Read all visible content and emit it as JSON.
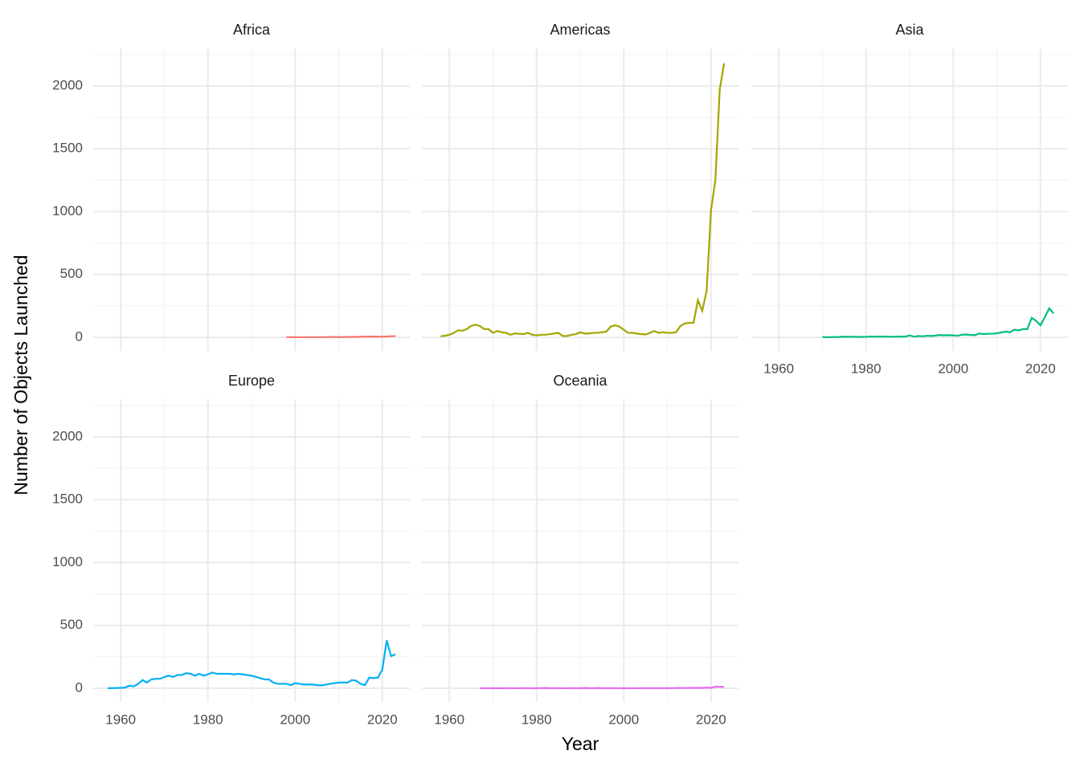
{
  "xlabel": "Year",
  "ylabel": "Number of Objects Launched",
  "chart_data": [
    {
      "type": "line",
      "title": "Africa",
      "x": [
        1998,
        1999,
        2000,
        2001,
        2002,
        2003,
        2004,
        2005,
        2006,
        2007,
        2008,
        2009,
        2010,
        2011,
        2012,
        2013,
        2014,
        2015,
        2016,
        2017,
        2018,
        2019,
        2020,
        2021,
        2022,
        2023
      ],
      "series": [
        {
          "color": "#F8766D",
          "values": [
            1,
            1,
            1,
            0,
            1,
            1,
            1,
            1,
            1,
            1,
            2,
            2,
            1,
            2,
            2,
            3,
            3,
            4,
            5,
            6,
            5,
            5,
            4,
            7,
            8,
            9
          ]
        }
      ],
      "xlim": [
        1953.7,
        2026.3
      ],
      "ylim": [
        -109,
        2300
      ],
      "xticks": [
        1960,
        1980,
        2000,
        2020
      ],
      "yticks": [
        0,
        500,
        1000,
        1500,
        2000
      ],
      "grid": true
    },
    {
      "type": "line",
      "title": "Americas",
      "x": [
        1958,
        1959,
        1960,
        1961,
        1962,
        1963,
        1964,
        1965,
        1966,
        1967,
        1968,
        1969,
        1970,
        1971,
        1972,
        1973,
        1974,
        1975,
        1976,
        1977,
        1978,
        1979,
        1980,
        1981,
        1982,
        1983,
        1984,
        1985,
        1986,
        1987,
        1988,
        1989,
        1990,
        1991,
        1992,
        1993,
        1994,
        1995,
        1996,
        1997,
        1998,
        1999,
        2000,
        2001,
        2002,
        2003,
        2004,
        2005,
        2006,
        2007,
        2008,
        2009,
        2010,
        2011,
        2012,
        2013,
        2014,
        2015,
        2016,
        2017,
        2018,
        2019,
        2020,
        2021,
        2022,
        2023
      ],
      "series": [
        {
          "color": "#A3A500",
          "values": [
            8,
            12,
            20,
            35,
            55,
            52,
            65,
            90,
            100,
            90,
            65,
            65,
            35,
            50,
            40,
            35,
            20,
            30,
            28,
            25,
            35,
            20,
            15,
            20,
            20,
            25,
            30,
            35,
            10,
            10,
            20,
            25,
            40,
            30,
            30,
            35,
            35,
            40,
            45,
            85,
            95,
            85,
            60,
            35,
            35,
            30,
            25,
            22,
            35,
            50,
            35,
            40,
            35,
            35,
            40,
            90,
            110,
            115,
            115,
            295,
            210,
            370,
            1010,
            1250,
            1970,
            2180
          ]
        }
      ],
      "xlim": [
        1953.7,
        2026.3
      ],
      "ylim": [
        -109,
        2300
      ],
      "xticks": [
        1960,
        1980,
        2000,
        2020
      ],
      "yticks": [
        0,
        500,
        1000,
        1500,
        2000
      ],
      "grid": true
    },
    {
      "type": "line",
      "title": "Asia",
      "x": [
        1970,
        1971,
        1972,
        1973,
        1974,
        1975,
        1976,
        1977,
        1978,
        1979,
        1980,
        1981,
        1982,
        1983,
        1984,
        1985,
        1986,
        1987,
        1988,
        1989,
        1990,
        1991,
        1992,
        1993,
        1994,
        1995,
        1996,
        1997,
        1998,
        1999,
        2000,
        2001,
        2002,
        2003,
        2004,
        2005,
        2006,
        2007,
        2008,
        2009,
        2010,
        2011,
        2012,
        2013,
        2014,
        2015,
        2016,
        2017,
        2018,
        2019,
        2020,
        2021,
        2022,
        2023
      ],
      "series": [
        {
          "color": "#00BF7D",
          "values": [
            2,
            1,
            1,
            2,
            3,
            5,
            4,
            4,
            3,
            3,
            4,
            6,
            4,
            6,
            5,
            5,
            4,
            5,
            6,
            5,
            15,
            5,
            10,
            8,
            12,
            10,
            14,
            18,
            15,
            17,
            15,
            12,
            20,
            22,
            18,
            17,
            30,
            25,
            28,
            28,
            32,
            38,
            45,
            40,
            60,
            55,
            65,
            65,
            155,
            130,
            95,
            160,
            230,
            190
          ]
        }
      ],
      "xlim": [
        1953.7,
        2026.3
      ],
      "ylim": [
        -109,
        2300
      ],
      "xticks": [
        1960,
        1980,
        2000,
        2020
      ],
      "yticks": [
        0,
        500,
        1000,
        1500,
        2000
      ],
      "grid": true
    },
    {
      "type": "line",
      "title": "Europe",
      "x": [
        1957,
        1958,
        1959,
        1960,
        1961,
        1962,
        1963,
        1964,
        1965,
        1966,
        1967,
        1968,
        1969,
        1970,
        1971,
        1972,
        1973,
        1974,
        1975,
        1976,
        1977,
        1978,
        1979,
        1980,
        1981,
        1982,
        1983,
        1984,
        1985,
        1986,
        1987,
        1988,
        1989,
        1990,
        1991,
        1992,
        1993,
        1994,
        1995,
        1996,
        1997,
        1998,
        1999,
        2000,
        2001,
        2002,
        2003,
        2004,
        2005,
        2006,
        2007,
        2008,
        2009,
        2010,
        2011,
        2012,
        2013,
        2014,
        2015,
        2016,
        2017,
        2018,
        2019,
        2020,
        2021,
        2022,
        2023
      ],
      "series": [
        {
          "color": "#00B0F6",
          "values": [
            1,
            1,
            2,
            3,
            5,
            20,
            15,
            35,
            65,
            45,
            70,
            75,
            75,
            90,
            100,
            90,
            105,
            105,
            120,
            115,
            100,
            115,
            100,
            110,
            125,
            115,
            115,
            115,
            115,
            110,
            115,
            110,
            105,
            100,
            90,
            80,
            70,
            70,
            45,
            35,
            35,
            35,
            25,
            40,
            35,
            30,
            30,
            30,
            25,
            22,
            28,
            35,
            40,
            45,
            45,
            45,
            65,
            60,
            35,
            25,
            85,
            80,
            85,
            150,
            380,
            255,
            270
          ]
        }
      ],
      "xlim": [
        1953.7,
        2026.3
      ],
      "ylim": [
        -109,
        2300
      ],
      "xticks": [
        1960,
        1980,
        2000,
        2020
      ],
      "yticks": [
        0,
        500,
        1000,
        1500,
        2000
      ],
      "grid": true
    },
    {
      "type": "line",
      "title": "Oceania",
      "x": [
        1967,
        1968,
        1969,
        1970,
        1971,
        1972,
        1973,
        1974,
        1975,
        1976,
        1977,
        1978,
        1979,
        1980,
        1981,
        1982,
        1983,
        1984,
        1985,
        1986,
        1987,
        1988,
        1989,
        1990,
        1991,
        1992,
        1993,
        1994,
        1995,
        1996,
        1997,
        1998,
        1999,
        2000,
        2001,
        2002,
        2003,
        2004,
        2005,
        2006,
        2007,
        2008,
        2009,
        2010,
        2011,
        2012,
        2013,
        2014,
        2015,
        2016,
        2017,
        2018,
        2019,
        2020,
        2021,
        2022,
        2023
      ],
      "series": [
        {
          "color": "#E76BF3",
          "values": [
            1,
            0,
            0,
            1,
            0,
            1,
            0,
            1,
            0,
            0,
            1,
            1,
            0,
            1,
            1,
            2,
            1,
            1,
            1,
            0,
            0,
            1,
            1,
            1,
            2,
            1,
            1,
            2,
            1,
            1,
            1,
            1,
            0,
            1,
            0,
            1,
            0,
            1,
            1,
            1,
            1,
            1,
            1,
            1,
            1,
            2,
            2,
            2,
            3,
            3,
            3,
            3,
            5,
            3,
            12,
            12,
            10
          ]
        }
      ],
      "xlim": [
        1953.7,
        2026.3
      ],
      "ylim": [
        -109,
        2300
      ],
      "xticks": [
        1960,
        1980,
        2000,
        2020
      ],
      "yticks": [
        0,
        500,
        1000,
        1500,
        2000
      ],
      "grid": true
    }
  ]
}
